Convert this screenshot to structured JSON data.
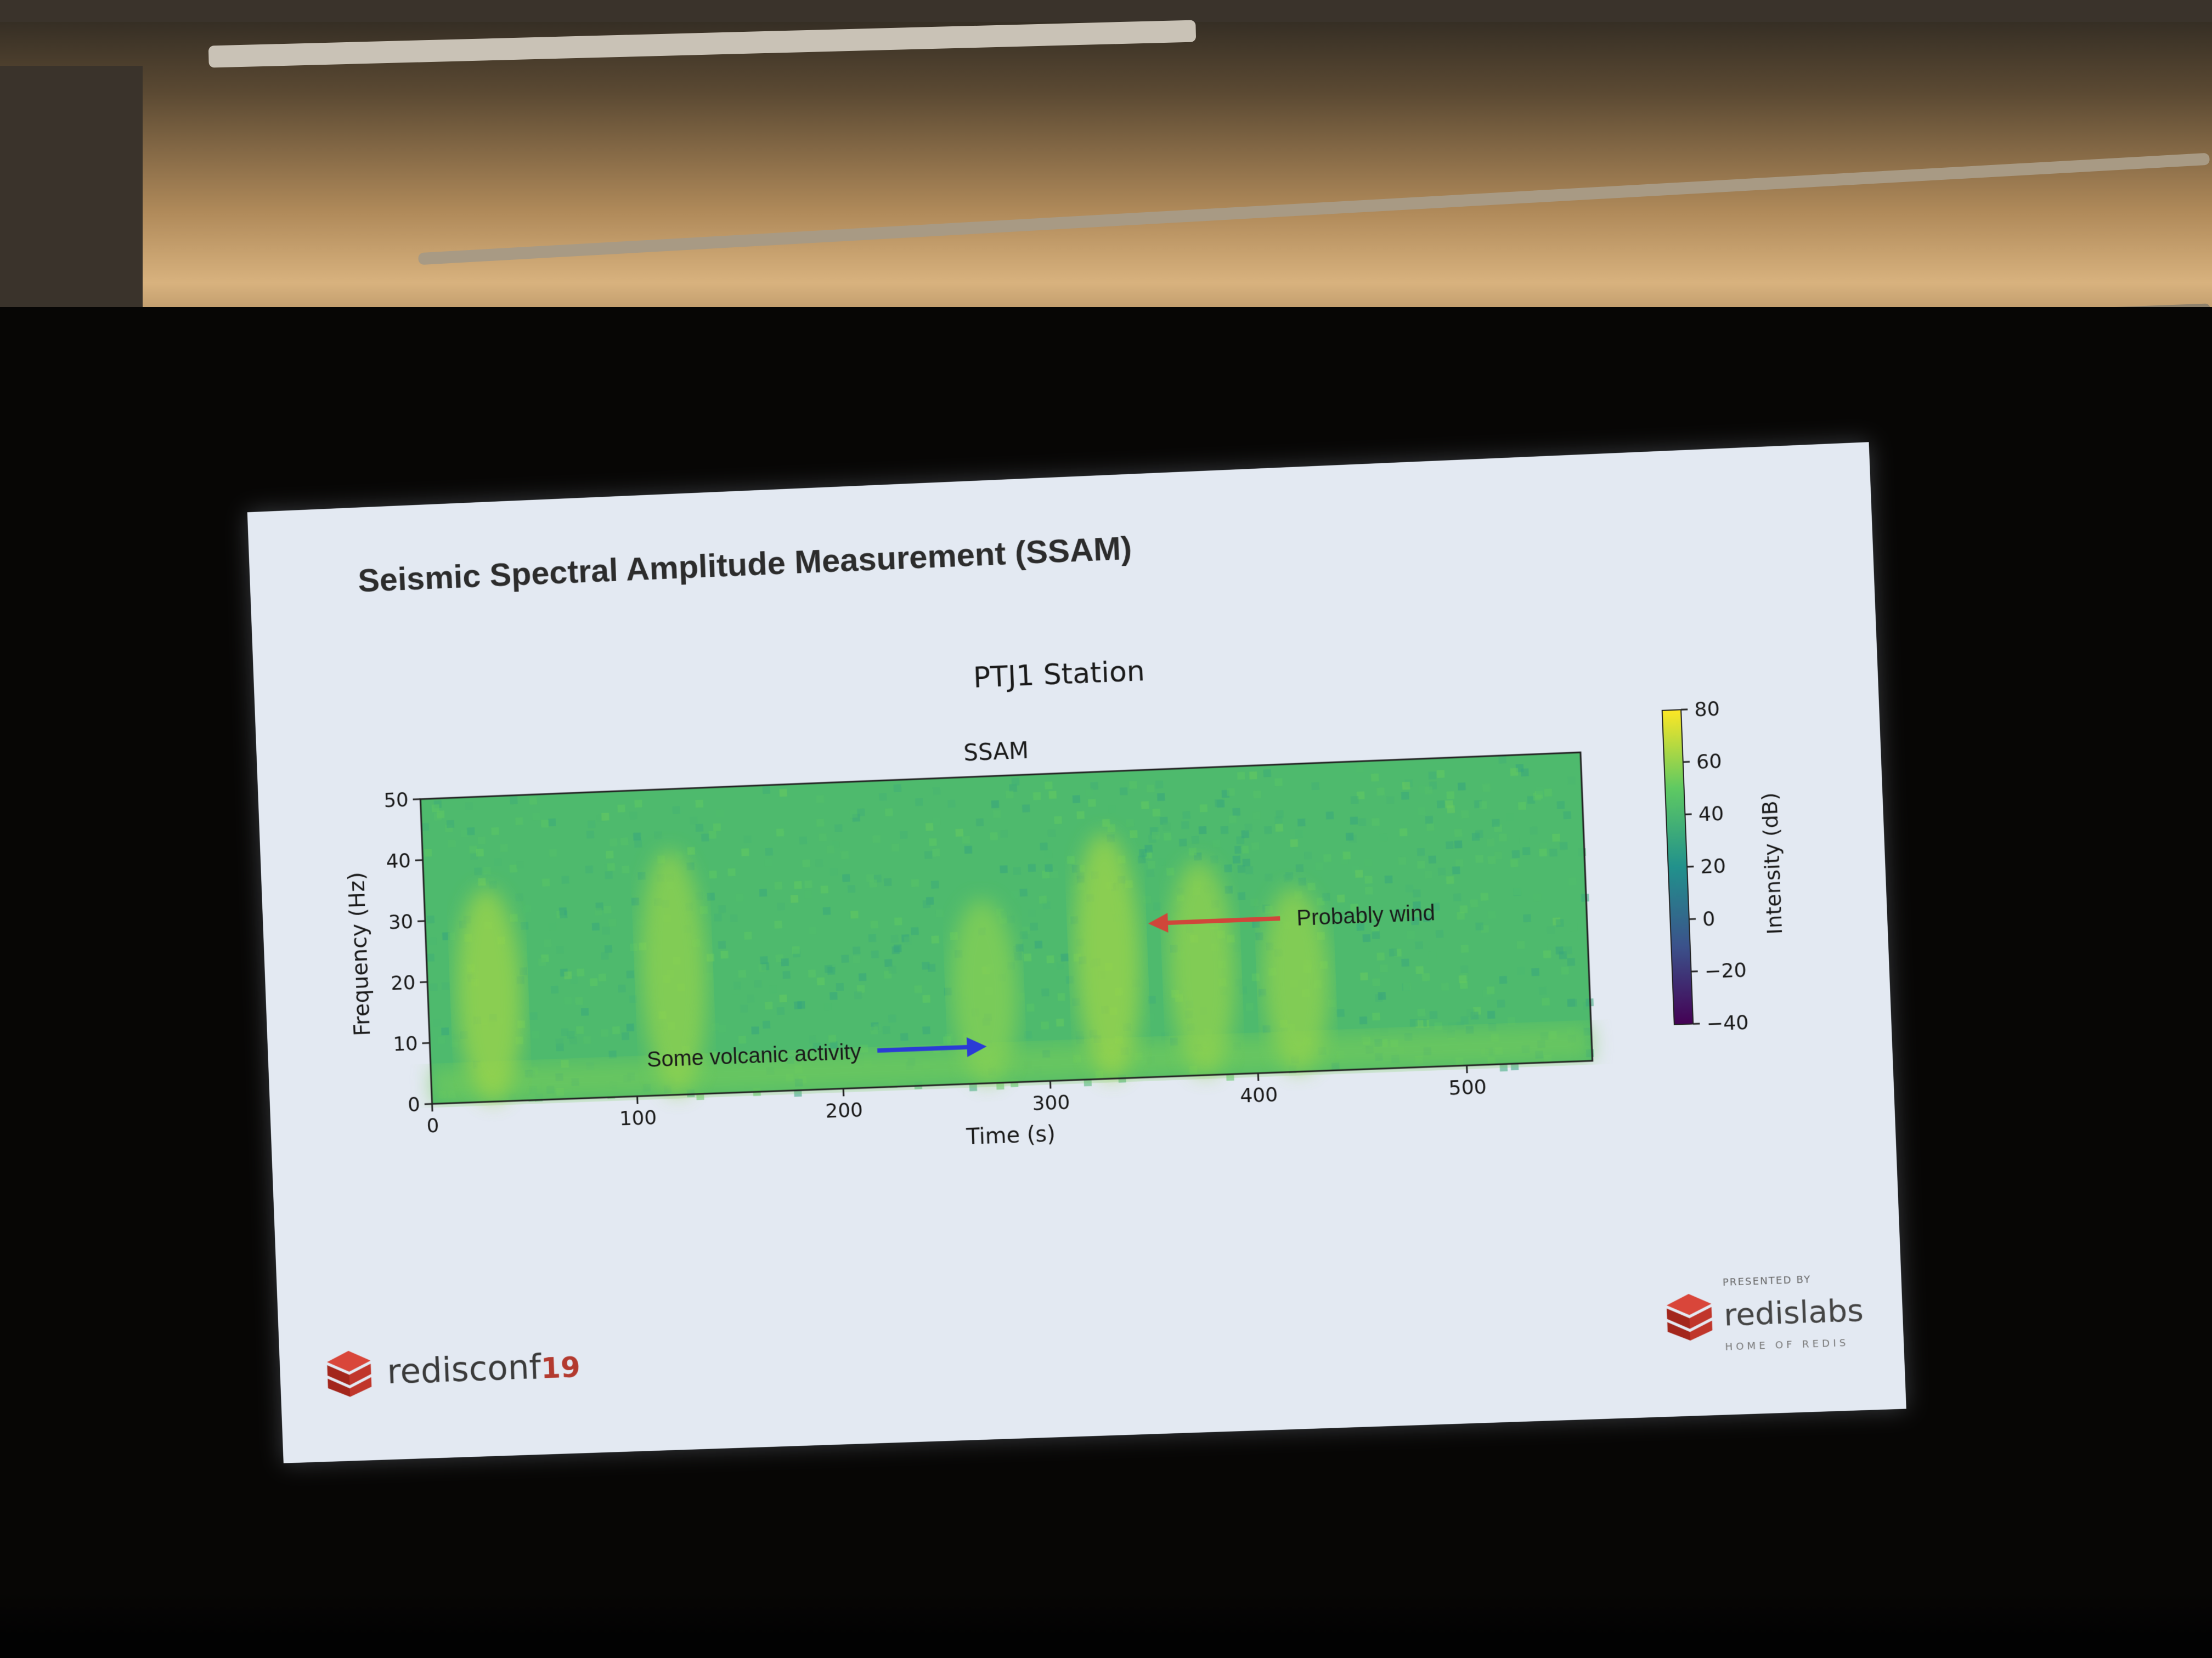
{
  "slide": {
    "title": "Seismic Spectral Amplitude Measurement (SSAM)"
  },
  "chart_data": {
    "type": "heatmap",
    "figure_title": "PTJ1 Station",
    "title": "SSAM",
    "xlabel": "Time (s)",
    "ylabel": "Frequency (Hz)",
    "colorbar_label": "Intensity (dB)",
    "xlim": [
      0,
      560
    ],
    "ylim": [
      0,
      50
    ],
    "clim": [
      -40,
      80
    ],
    "x_ticks": [
      0,
      100,
      200,
      300,
      400,
      500
    ],
    "y_ticks": [
      0,
      10,
      20,
      30,
      40,
      50
    ],
    "colorbar_ticks": [
      80,
      60,
      40,
      20,
      0,
      -20,
      -40
    ],
    "x_tick_labels": [
      "0",
      "100",
      "200",
      "300",
      "400",
      "500"
    ],
    "y_tick_labels": [
      "0",
      "10",
      "20",
      "30",
      "40",
      "50"
    ],
    "colorbar_tick_labels": [
      "80",
      "60",
      "40",
      "20",
      "0",
      "−20",
      "−40"
    ],
    "colormap": "viridis",
    "background_level_db": 42,
    "bright_bursts": [
      {
        "time": 30,
        "freq_max": 35,
        "peak_db": 62
      },
      {
        "time": 120,
        "freq_max": 40,
        "peak_db": 60
      },
      {
        "time": 270,
        "freq_max": 30,
        "peak_db": 58
      },
      {
        "time": 330,
        "freq_max": 40,
        "peak_db": 62
      },
      {
        "time": 375,
        "freq_max": 35,
        "peak_db": 60
      },
      {
        "time": 420,
        "freq_max": 30,
        "peak_db": 60
      }
    ],
    "annotations": [
      {
        "text": "Some volcanic activity",
        "color": "#2a3bd6",
        "arrow": "right",
        "time": 270,
        "freq": 6
      },
      {
        "text": "Probably wind",
        "color": "#d0463a",
        "arrow": "left",
        "time": 350,
        "freq": 25
      }
    ]
  },
  "branding": {
    "left_word": "redisconf",
    "left_year": "19",
    "right_presented": "PRESENTED BY",
    "right_word": "redislabs",
    "right_home": "HOME OF REDIS"
  },
  "colors": {
    "slide_bg": "#e3e9f2",
    "brand_red": "#b33a2f"
  }
}
